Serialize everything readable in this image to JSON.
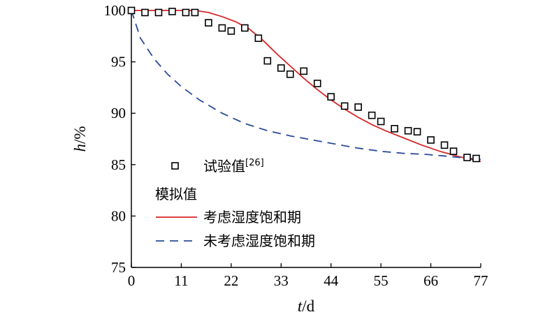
{
  "chart_data": {
    "type": "scatter",
    "xlabel_var": "t",
    "xlabel_unit": "/d",
    "ylabel_var": "h",
    "ylabel_unit": "/%",
    "xlim": [
      0,
      77
    ],
    "ylim": [
      75,
      100
    ],
    "xticks": [
      "0",
      "11",
      "22",
      "33",
      "44",
      "55",
      "66",
      "77"
    ],
    "yticks": [
      "75",
      "80",
      "85",
      "90",
      "95",
      "100"
    ],
    "grid": false,
    "legend_position": "bottom-left",
    "legend": {
      "measured_label": "试验值",
      "measured_ref": "[26]",
      "group_label": "模拟值",
      "sim_sat_label": "考虑湿度饱和期",
      "sim_nosat_label": "未考虑湿度饱和期"
    },
    "colors": {
      "sim_sat": "#d62728",
      "sim_nosat": "#2a4a9a",
      "measured": "#000000"
    },
    "series": [
      {
        "name": "试验值",
        "kind": "scatter",
        "x": [
          0,
          3,
          6,
          9,
          12,
          14,
          17,
          20,
          22,
          25,
          28,
          30,
          33,
          35,
          38,
          41,
          44,
          47,
          50,
          53,
          55,
          58,
          61,
          63,
          66,
          69,
          71,
          74,
          76
        ],
        "y": [
          100,
          99.8,
          99.8,
          99.9,
          99.8,
          99.8,
          98.8,
          98.3,
          98.0,
          98.3,
          97.3,
          95.1,
          94.4,
          93.8,
          94.1,
          92.9,
          91.6,
          90.7,
          90.6,
          89.8,
          89.2,
          88.5,
          88.3,
          88.2,
          87.4,
          86.9,
          86.3,
          85.7,
          85.6
        ]
      },
      {
        "name": "考虑湿度饱和期",
        "kind": "line",
        "x": [
          0,
          5,
          10,
          14,
          17,
          20,
          23,
          26,
          29,
          32,
          35,
          38,
          41,
          44,
          47,
          50,
          53,
          56,
          60,
          64,
          68,
          72,
          77
        ],
        "y": [
          100,
          100,
          100,
          100,
          99.8,
          99.4,
          98.9,
          98.2,
          97.1,
          95.8,
          94.6,
          93.4,
          92.3,
          91.3,
          90.4,
          89.6,
          88.9,
          88.3,
          87.6,
          86.9,
          86.3,
          85.8,
          85.3
        ]
      },
      {
        "name": "未考虑湿度饱和期",
        "kind": "dashed-line",
        "x": [
          0,
          2,
          5,
          8,
          11,
          15,
          20,
          25,
          30,
          35,
          40,
          45,
          50,
          55,
          60,
          65,
          70,
          77
        ],
        "y": [
          100,
          97.3,
          95.3,
          93.8,
          92.6,
          91.3,
          90.0,
          89.0,
          88.3,
          87.8,
          87.4,
          87.0,
          86.6,
          86.3,
          86.1,
          86.0,
          85.8,
          85.5
        ]
      }
    ]
  }
}
